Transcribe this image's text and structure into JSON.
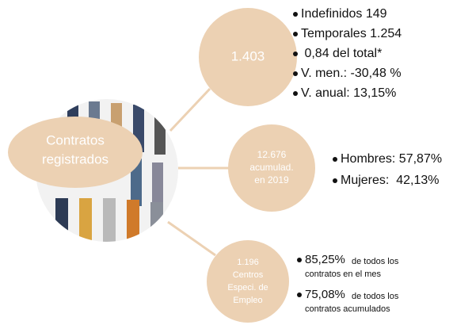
{
  "center": {
    "lines": [
      "Contratos",
      "registrados"
    ]
  },
  "nodes": [
    {
      "lines": [
        "1.403"
      ],
      "bullets": [
        "Indefinidos 149",
        "Temporales 1.254",
        " 0,84 del total*",
        "V. men.: -30,48 %",
        "V. anual: 13,15%"
      ]
    },
    {
      "lines": [
        "12.676",
        "acumulad.",
        "en 2019"
      ],
      "bullets": [
        "Hombres: 57,87%",
        "Mujeres:  42,13%"
      ]
    },
    {
      "lines": [
        "1.196",
        "Centros",
        "Especi. de",
        "Empleo"
      ],
      "bullets": [
        {
          "value": "85,25%",
          "lines": [
            "de todos los",
            "contratos en el mes"
          ]
        },
        {
          "value": "75,08%",
          "lines": [
            "de todos los",
            "contratos acumulados"
          ]
        }
      ]
    }
  ]
}
